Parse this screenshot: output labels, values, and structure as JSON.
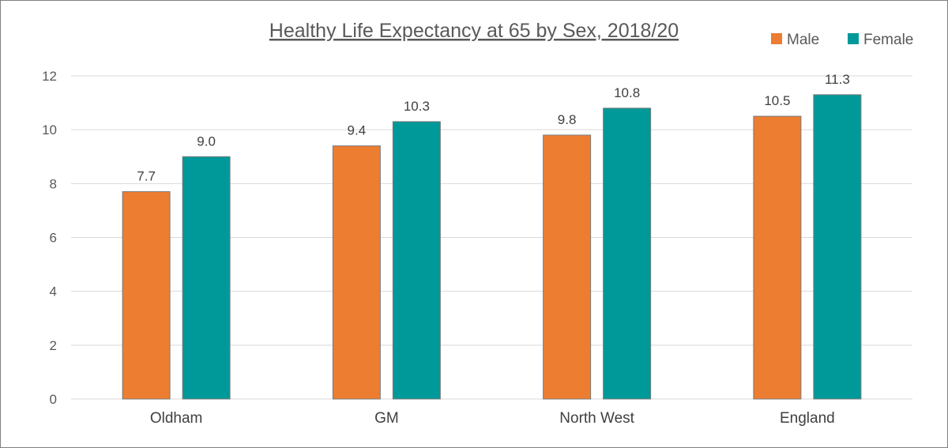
{
  "chart_data": {
    "type": "bar",
    "title": "Healthy Life Expectancy at 65 by Sex, 2018/20",
    "xlabel": "",
    "ylabel": "",
    "categories": [
      "Oldham",
      "GM",
      "North West",
      "England"
    ],
    "series": [
      {
        "name": "Male",
        "values": [
          7.7,
          9.4,
          9.8,
          10.5
        ],
        "color": "#ed7d31",
        "labels": [
          "7.7",
          "9.4",
          "9.8",
          "10.5"
        ]
      },
      {
        "name": "Female",
        "values": [
          9.0,
          10.3,
          10.8,
          11.3
        ],
        "color": "#009999",
        "labels": [
          "9.0",
          "10.3",
          "10.8",
          "11.3"
        ]
      }
    ],
    "ylim": [
      0,
      12
    ],
    "yticks": [
      0,
      2,
      4,
      6,
      8,
      10,
      12
    ],
    "grid": true,
    "legend": "top-right",
    "data_labels": true
  }
}
